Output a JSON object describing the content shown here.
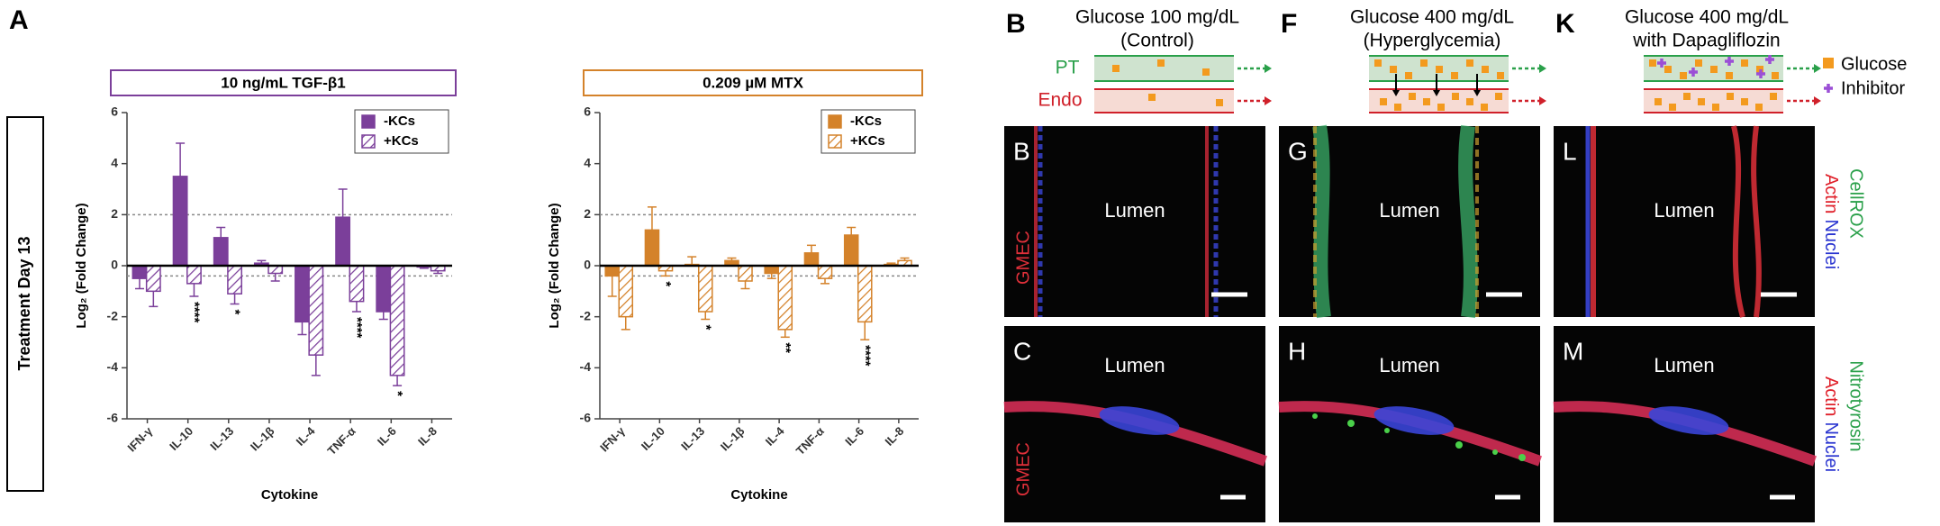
{
  "panel_label": "A",
  "row_label": "Treatment Day 13",
  "chart_data": [
    {
      "type": "bar",
      "title": "10 ng/mL TGF-β1",
      "y_label": "Log₂ (Fold Change)",
      "x_label": "Cytokine",
      "categories": [
        "IFN-γ",
        "IL-10",
        "IL-13",
        "IL-1β",
        "IL-4",
        "TNF-α",
        "IL-6",
        "IL-8"
      ],
      "ylim": [
        -6,
        6
      ],
      "yticks": [
        -6,
        -4,
        -2,
        0,
        2,
        4,
        6
      ],
      "ref_lines": [
        2,
        -0.4
      ],
      "legend": "upper right",
      "series": [
        {
          "name": "-KCs",
          "color": "#7b3f9a",
          "pattern": "solid",
          "values": [
            -0.5,
            3.5,
            1.1,
            0.1,
            -2.2,
            1.9,
            -1.8,
            -0.05
          ],
          "errors": [
            0.4,
            1.3,
            0.4,
            0.1,
            0.5,
            1.1,
            0.3,
            0.05
          ]
        },
        {
          "name": "+KCs",
          "color": "#7b3f9a",
          "pattern": "hatched",
          "values": [
            -1.0,
            -0.7,
            -1.1,
            -0.3,
            -3.5,
            -1.4,
            -4.3,
            -0.2
          ],
          "errors": [
            0.6,
            0.5,
            0.4,
            0.3,
            0.8,
            0.4,
            0.4,
            0.1
          ],
          "annotations": [
            null,
            "****",
            "*",
            null,
            null,
            "****",
            "*",
            null
          ]
        }
      ]
    },
    {
      "type": "bar",
      "title": "0.209 µM MTX",
      "y_label": "Log₂ (Fold Change)",
      "x_label": "Cytokine",
      "categories": [
        "IFN-γ",
        "IL-10",
        "IL-13",
        "IL-1β",
        "IL-4",
        "TNF-α",
        "IL-6",
        "IL-8"
      ],
      "ylim": [
        -6,
        6
      ],
      "yticks": [
        -6,
        -4,
        -2,
        0,
        2,
        4,
        6
      ],
      "ref_lines": [
        2,
        -0.4
      ],
      "legend": "upper right",
      "series": [
        {
          "name": "-KCs",
          "color": "#d4822a",
          "pattern": "solid",
          "values": [
            -0.4,
            1.4,
            0.05,
            0.2,
            -0.3,
            0.5,
            1.2,
            0.05
          ],
          "errors": [
            0.8,
            0.9,
            0.3,
            0.1,
            0.2,
            0.3,
            0.3,
            0.05
          ]
        },
        {
          "name": "+KCs",
          "color": "#d4822a",
          "pattern": "hatched",
          "values": [
            -2.0,
            -0.2,
            -1.8,
            -0.6,
            -2.5,
            -0.5,
            -2.2,
            0.2
          ],
          "errors": [
            0.5,
            0.2,
            0.3,
            0.3,
            0.3,
            0.2,
            0.7,
            0.1
          ],
          "annotations": [
            null,
            "*",
            "*",
            null,
            "**",
            null,
            "****",
            null
          ]
        }
      ]
    }
  ],
  "diagram": {
    "pt": "PT",
    "endo": "Endo",
    "legend": [
      "Glucose",
      "Inhibitor"
    ]
  },
  "row_labels": [
    "GMEC",
    "GMEC"
  ],
  "stain_labels": [
    [
      "Actin",
      "Nuclei",
      "CellROX"
    ],
    [
      "Actin",
      "Nuclei",
      "Nitrotyrosin"
    ]
  ],
  "panels": [
    {
      "label": "B",
      "heading": [
        "Glucose 100 mg/dL",
        "(Control)"
      ],
      "images": [
        {
          "label": "B",
          "text": "Lumen"
        },
        {
          "label": "C",
          "text": "Lumen"
        }
      ]
    },
    {
      "label": "F",
      "heading": [
        "Glucose 400 mg/dL",
        "(Hyperglycemia)"
      ],
      "images": [
        {
          "label": "G",
          "text": "Lumen"
        },
        {
          "label": "H",
          "text": "Lumen"
        }
      ]
    },
    {
      "label": "K",
      "heading": [
        "Glucose 400 mg/dL",
        "with Dapagliflozin"
      ],
      "images": [
        {
          "label": "L",
          "text": "Lumen"
        },
        {
          "label": "M",
          "text": "Lumen"
        }
      ]
    }
  ]
}
